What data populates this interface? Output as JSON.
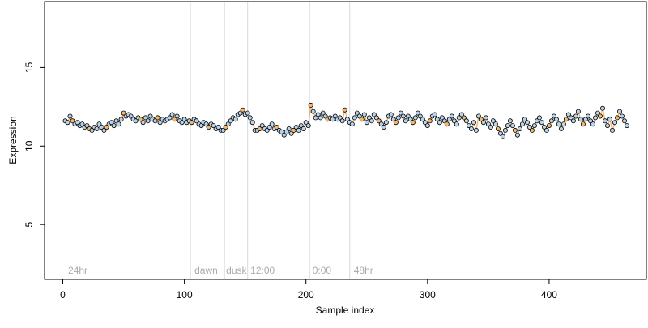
{
  "chart_data": {
    "type": "scatter",
    "title": "",
    "xlabel": "Sample index",
    "ylabel": "Expression",
    "xlim": [
      -15,
      480
    ],
    "ylim": [
      1.5,
      19.2
    ],
    "xticks": [
      0,
      100,
      200,
      300,
      400
    ],
    "yticks": [
      5,
      10,
      15
    ],
    "colors": {
      "point_fill_light": "#b9d3ea",
      "point_fill_orange": "#f7b765",
      "point_stroke": "#000000",
      "series_line": "#f0a04b",
      "vline": "#d9d9d9",
      "annot": "#aaaaaa"
    },
    "vlines": [
      105,
      133,
      152,
      203,
      236
    ],
    "annotations": [
      {
        "text": "24hr",
        "x": 3
      },
      {
        "text": "dawn",
        "x": 107
      },
      {
        "text": "dusk",
        "x": 133
      },
      {
        "text": "12:00",
        "x": 153
      },
      {
        "text": "0:00",
        "x": 204
      },
      {
        "text": "48hr",
        "x": 238
      }
    ],
    "series": [
      {
        "points": [
          [
            2,
            11.6
          ],
          [
            4,
            11.5
          ],
          [
            6,
            11.9
          ],
          [
            8,
            11.6
          ],
          [
            10,
            11.4
          ],
          [
            12,
            11.5
          ],
          [
            14,
            11.3
          ],
          [
            16,
            11.4
          ],
          [
            18,
            11.2
          ],
          [
            20,
            11.3
          ],
          [
            22,
            11.1
          ],
          [
            24,
            11.0
          ],
          [
            26,
            11.2
          ],
          [
            28,
            11.1
          ],
          [
            30,
            11.4
          ],
          [
            32,
            11.2
          ],
          [
            34,
            11.0
          ],
          [
            36,
            11.2
          ],
          [
            38,
            11.4
          ],
          [
            40,
            11.5
          ],
          [
            42,
            11.3
          ],
          [
            44,
            11.6
          ],
          [
            46,
            11.4
          ],
          [
            48,
            11.7
          ],
          [
            50,
            12.1
          ],
          [
            52,
            11.9
          ],
          [
            54,
            12.0
          ],
          [
            56,
            11.9
          ],
          [
            58,
            11.7
          ],
          [
            60,
            11.6
          ],
          [
            62,
            11.8
          ],
          [
            64,
            11.7
          ],
          [
            66,
            11.5
          ],
          [
            68,
            11.8
          ],
          [
            70,
            11.6
          ],
          [
            72,
            11.9
          ],
          [
            74,
            11.7
          ],
          [
            76,
            11.6
          ],
          [
            78,
            11.8
          ],
          [
            80,
            11.5
          ],
          [
            82,
            11.7
          ],
          [
            84,
            11.6
          ],
          [
            86,
            11.7
          ],
          [
            88,
            11.8
          ],
          [
            90,
            12.0
          ],
          [
            92,
            11.7
          ],
          [
            94,
            11.9
          ],
          [
            96,
            11.6
          ],
          [
            98,
            11.5
          ],
          [
            100,
            11.7
          ],
          [
            102,
            11.5
          ],
          [
            104,
            11.6
          ],
          [
            106,
            11.5
          ],
          [
            108,
            11.7
          ],
          [
            110,
            11.6
          ],
          [
            112,
            11.4
          ],
          [
            114,
            11.3
          ],
          [
            116,
            11.5
          ],
          [
            118,
            11.4
          ],
          [
            120,
            11.2
          ],
          [
            122,
            11.4
          ],
          [
            124,
            11.3
          ],
          [
            126,
            11.1
          ],
          [
            128,
            11.2
          ],
          [
            130,
            11.0
          ],
          [
            132,
            11.0
          ],
          [
            134,
            11.2
          ],
          [
            136,
            11.4
          ],
          [
            138,
            11.6
          ],
          [
            140,
            11.8
          ],
          [
            142,
            11.7
          ],
          [
            144,
            12.0
          ],
          [
            146,
            12.1
          ],
          [
            148,
            12.3
          ],
          [
            150,
            12.0
          ],
          [
            152,
            12.1
          ],
          [
            154,
            11.8
          ],
          [
            156,
            11.5
          ],
          [
            158,
            11.0
          ],
          [
            160,
            11.0
          ],
          [
            162,
            11.1
          ],
          [
            164,
            11.3
          ],
          [
            166,
            11.1
          ],
          [
            168,
            11.0
          ],
          [
            170,
            11.2
          ],
          [
            172,
            11.4
          ],
          [
            174,
            11.1
          ],
          [
            176,
            11.2
          ],
          [
            178,
            11.0
          ],
          [
            180,
            10.9
          ],
          [
            182,
            10.7
          ],
          [
            184,
            10.9
          ],
          [
            186,
            11.1
          ],
          [
            188,
            10.8
          ],
          [
            190,
            11.0
          ],
          [
            192,
            11.2
          ],
          [
            194,
            11.0
          ],
          [
            196,
            11.3
          ],
          [
            198,
            11.1
          ],
          [
            200,
            11.5
          ],
          [
            202,
            11.3
          ],
          [
            204,
            12.6
          ],
          [
            206,
            12.2
          ],
          [
            208,
            11.8
          ],
          [
            210,
            12.0
          ],
          [
            212,
            11.8
          ],
          [
            214,
            12.1
          ],
          [
            216,
            11.9
          ],
          [
            218,
            11.7
          ],
          [
            220,
            11.8
          ],
          [
            222,
            11.7
          ],
          [
            224,
            11.9
          ],
          [
            226,
            11.7
          ],
          [
            228,
            11.8
          ],
          [
            230,
            11.6
          ],
          [
            232,
            12.3
          ],
          [
            234,
            11.7
          ],
          [
            236,
            11.5
          ],
          [
            238,
            11.4
          ],
          [
            240,
            11.8
          ],
          [
            242,
            12.1
          ],
          [
            244,
            11.9
          ],
          [
            246,
            11.7
          ],
          [
            248,
            12.0
          ],
          [
            250,
            11.5
          ],
          [
            252,
            11.8
          ],
          [
            254,
            11.6
          ],
          [
            256,
            12.0
          ],
          [
            258,
            11.8
          ],
          [
            260,
            11.6
          ],
          [
            262,
            11.4
          ],
          [
            264,
            11.2
          ],
          [
            266,
            11.5
          ],
          [
            268,
            11.9
          ],
          [
            270,
            12.0
          ],
          [
            272,
            11.7
          ],
          [
            274,
            11.5
          ],
          [
            276,
            11.8
          ],
          [
            278,
            12.1
          ],
          [
            280,
            11.9
          ],
          [
            282,
            11.6
          ],
          [
            284,
            11.9
          ],
          [
            286,
            11.7
          ],
          [
            288,
            11.5
          ],
          [
            290,
            11.8
          ],
          [
            292,
            12.1
          ],
          [
            294,
            11.9
          ],
          [
            296,
            11.7
          ],
          [
            298,
            11.5
          ],
          [
            300,
            11.3
          ],
          [
            302,
            11.6
          ],
          [
            304,
            11.9
          ],
          [
            306,
            12.0
          ],
          [
            308,
            11.7
          ],
          [
            310,
            11.5
          ],
          [
            312,
            11.8
          ],
          [
            314,
            11.6
          ],
          [
            316,
            11.4
          ],
          [
            318,
            11.7
          ],
          [
            320,
            11.9
          ],
          [
            322,
            11.6
          ],
          [
            324,
            11.4
          ],
          [
            326,
            11.8
          ],
          [
            328,
            12.0
          ],
          [
            330,
            11.8
          ],
          [
            332,
            11.6
          ],
          [
            334,
            11.3
          ],
          [
            336,
            11.1
          ],
          [
            338,
            11.5
          ],
          [
            340,
            11.0
          ],
          [
            342,
            11.9
          ],
          [
            344,
            11.7
          ],
          [
            346,
            11.5
          ],
          [
            348,
            11.8
          ],
          [
            350,
            11.4
          ],
          [
            352,
            11.2
          ],
          [
            354,
            11.6
          ],
          [
            356,
            11.4
          ],
          [
            358,
            11.1
          ],
          [
            360,
            10.8
          ],
          [
            362,
            10.6
          ],
          [
            364,
            11.0
          ],
          [
            366,
            11.3
          ],
          [
            368,
            11.6
          ],
          [
            370,
            11.3
          ],
          [
            372,
            11.0
          ],
          [
            374,
            10.7
          ],
          [
            376,
            11.1
          ],
          [
            378,
            11.4
          ],
          [
            380,
            11.7
          ],
          [
            382,
            11.5
          ],
          [
            384,
            11.2
          ],
          [
            386,
            11.0
          ],
          [
            388,
            11.3
          ],
          [
            390,
            11.6
          ],
          [
            392,
            11.8
          ],
          [
            394,
            11.5
          ],
          [
            396,
            11.2
          ],
          [
            398,
            11.0
          ],
          [
            400,
            11.3
          ],
          [
            402,
            11.6
          ],
          [
            404,
            11.9
          ],
          [
            406,
            11.7
          ],
          [
            408,
            11.4
          ],
          [
            410,
            11.1
          ],
          [
            412,
            11.4
          ],
          [
            414,
            11.7
          ],
          [
            416,
            12.0
          ],
          [
            418,
            11.8
          ],
          [
            420,
            11.6
          ],
          [
            422,
            11.9
          ],
          [
            424,
            12.2
          ],
          [
            426,
            11.7
          ],
          [
            428,
            11.4
          ],
          [
            430,
            11.7
          ],
          [
            432,
            11.9
          ],
          [
            434,
            11.6
          ],
          [
            436,
            11.4
          ],
          [
            438,
            11.8
          ],
          [
            440,
            12.1
          ],
          [
            442,
            11.9
          ],
          [
            444,
            12.4
          ],
          [
            446,
            11.6
          ],
          [
            448,
            11.3
          ],
          [
            450,
            11.7
          ],
          [
            452,
            11.0
          ],
          [
            454,
            11.5
          ],
          [
            456,
            11.8
          ],
          [
            458,
            12.2
          ],
          [
            460,
            11.9
          ],
          [
            462,
            11.6
          ],
          [
            464,
            11.3
          ]
        ]
      }
    ]
  }
}
